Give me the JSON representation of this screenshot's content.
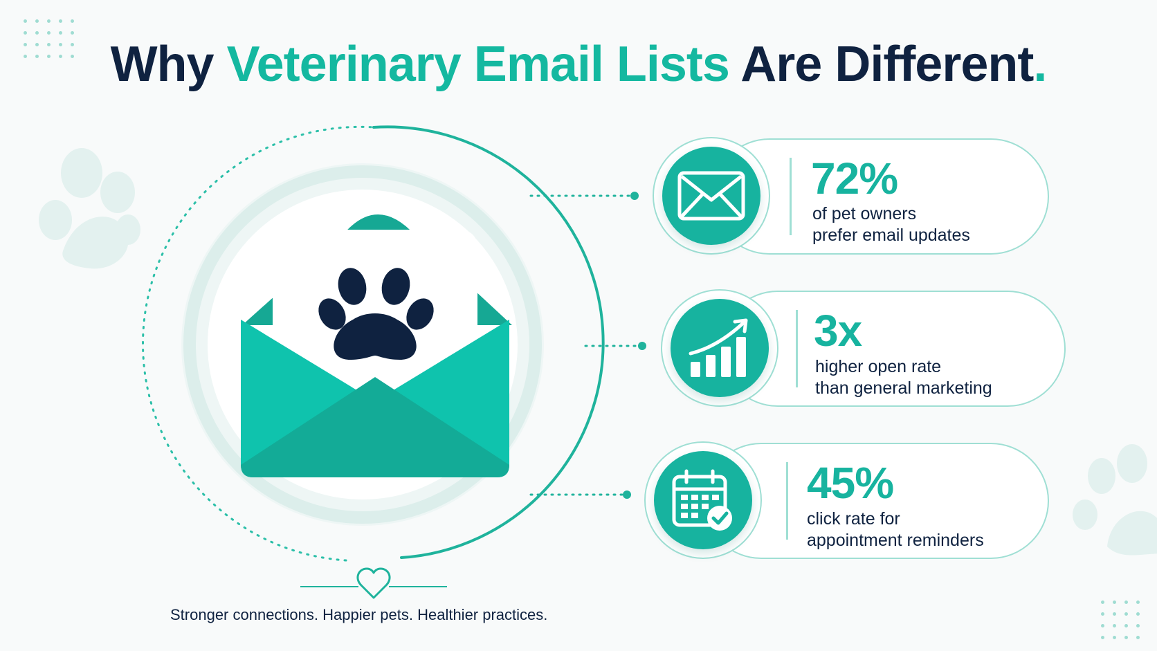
{
  "title": {
    "part1": "Why ",
    "highlight": "Veterinary Email Lists",
    "part2": " Are Different",
    "period": "."
  },
  "stats": [
    {
      "value": "72%",
      "line1": "of pet owners",
      "line2": "prefer email updates",
      "icon": "envelope-icon"
    },
    {
      "value": "3x",
      "line1": "higher open rate",
      "line2": "than general marketing",
      "icon": "growth-chart-icon"
    },
    {
      "value": "45%",
      "line1": "click rate for",
      "line2": "appointment reminders",
      "icon": "calendar-check-icon"
    }
  ],
  "hero_icon": "open-envelope-paw-icon",
  "tagline": "Stronger connections. Happier pets. Healthier practices.",
  "colors": {
    "teal": "#17b39f",
    "navy": "#0f2240",
    "mint": "#9fdfd4",
    "background": "#f8fafa"
  }
}
